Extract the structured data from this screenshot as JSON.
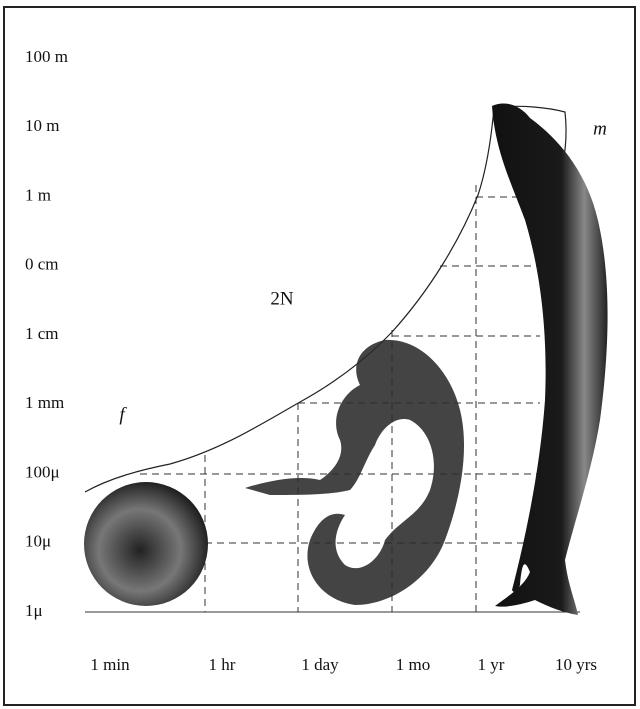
{
  "diagram": {
    "y_labels": [
      "100 m",
      "10 m",
      "1 m",
      "0 cm",
      "1 cm",
      "1 mm",
      "100μ",
      "10μ",
      "1μ"
    ],
    "x_labels": [
      "1 min",
      "1 hr",
      "1 day",
      "1 mo",
      "1 yr",
      "10 yrs"
    ],
    "annotations": {
      "egg": "f",
      "curve": "2N",
      "whale": "m"
    }
  }
}
